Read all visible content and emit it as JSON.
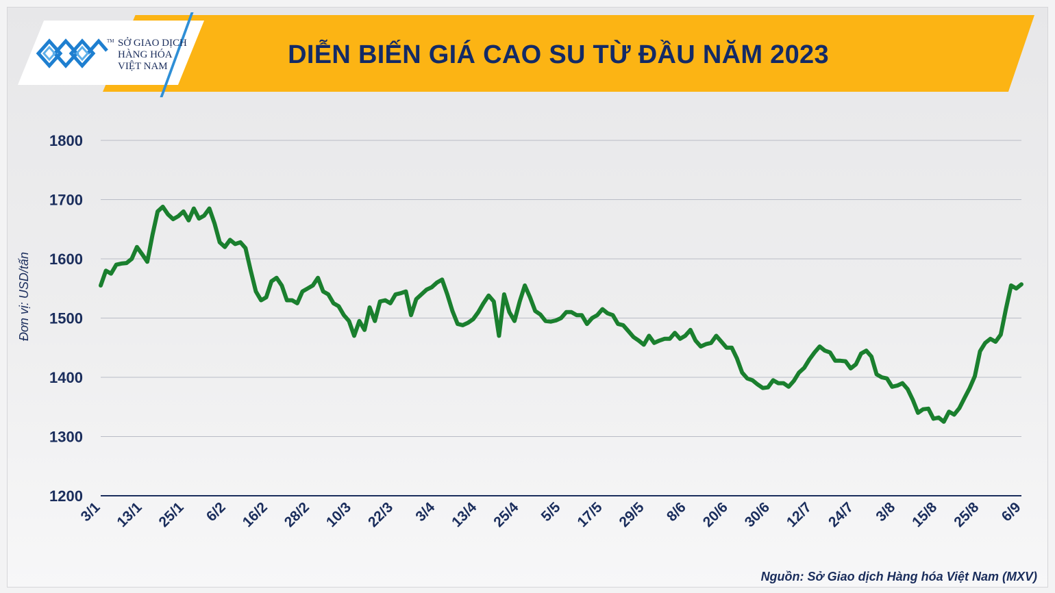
{
  "header": {
    "title": "DIỄN BIẾN GIÁ CAO SU TỪ ĐẦU NĂM 2023",
    "logo_line1": "SỞ GIAO DỊCH",
    "logo_line2": "HÀNG HÓA",
    "logo_line3": "VIỆT NAM",
    "logo_tm": "TM"
  },
  "source": "Nguồn: Sở Giao dịch Hàng hóa Việt Nam (MXV)",
  "colors": {
    "banner": "#fcb414",
    "title": "#132a66",
    "line": "#1a7f2e",
    "axis": "#1a2d5c"
  },
  "chart_data": {
    "type": "line",
    "title": "DIỄN BIẾN GIÁ CAO SU TỪ ĐẦU NĂM 2023",
    "xlabel": "",
    "ylabel": "Đơn vị: USD/tấn",
    "ylim": [
      1200,
      1800
    ],
    "yticks": [
      1200,
      1300,
      1400,
      1500,
      1600,
      1700,
      1800
    ],
    "grid": true,
    "x_tick_labels": [
      "3/1",
      "13/1",
      "25/1",
      "6/2",
      "16/2",
      "28/2",
      "10/3",
      "22/3",
      "3/4",
      "13/4",
      "25/4",
      "5/5",
      "17/5",
      "29/5",
      "8/6",
      "20/6",
      "30/6",
      "12/7",
      "24/7",
      "3/8",
      "15/8",
      "25/8",
      "6/9"
    ],
    "series": [
      {
        "values": [
          1555,
          1580,
          1575,
          1590,
          1592,
          1593,
          1600,
          1620,
          1608,
          1595,
          1640,
          1680,
          1688,
          1675,
          1667,
          1672,
          1680,
          1665,
          1685,
          1668,
          1673,
          1685,
          1660,
          1628,
          1620,
          1632,
          1625,
          1628,
          1618,
          1580,
          1545,
          1530,
          1535,
          1562,
          1568,
          1555,
          1530,
          1530,
          1525,
          1545,
          1550,
          1555,
          1568,
          1545,
          1540,
          1525,
          1520,
          1505,
          1495,
          1470,
          1495,
          1480,
          1518,
          1495,
          1528,
          1530,
          1525,
          1540,
          1542,
          1545,
          1505,
          1532,
          1540,
          1548,
          1552,
          1560,
          1565,
          1540,
          1512,
          1490,
          1488,
          1492,
          1498,
          1510,
          1525,
          1538,
          1528,
          1470,
          1540,
          1510,
          1495,
          1528,
          1555,
          1535,
          1512,
          1506,
          1495,
          1494,
          1496,
          1500,
          1510,
          1510,
          1505,
          1505,
          1490,
          1500,
          1505,
          1515,
          1508,
          1505,
          1490,
          1488,
          1478,
          1468,
          1462,
          1455,
          1470,
          1458,
          1462,
          1465,
          1465,
          1475,
          1465,
          1470,
          1480,
          1462,
          1452,
          1456,
          1458,
          1470,
          1460,
          1450,
          1450,
          1432,
          1408,
          1398,
          1395,
          1388,
          1382,
          1383,
          1395,
          1390,
          1390,
          1384,
          1394,
          1408,
          1416,
          1430,
          1442,
          1452,
          1445,
          1442,
          1428,
          1428,
          1427,
          1415,
          1422,
          1440,
          1445,
          1435,
          1405,
          1400,
          1398,
          1384,
          1386,
          1390,
          1380,
          1362,
          1340,
          1346,
          1347,
          1330,
          1332,
          1325,
          1342,
          1337,
          1348,
          1365,
          1382,
          1402,
          1444,
          1458,
          1465,
          1460,
          1472,
          1515,
          1555,
          1550,
          1557
        ]
      }
    ]
  }
}
